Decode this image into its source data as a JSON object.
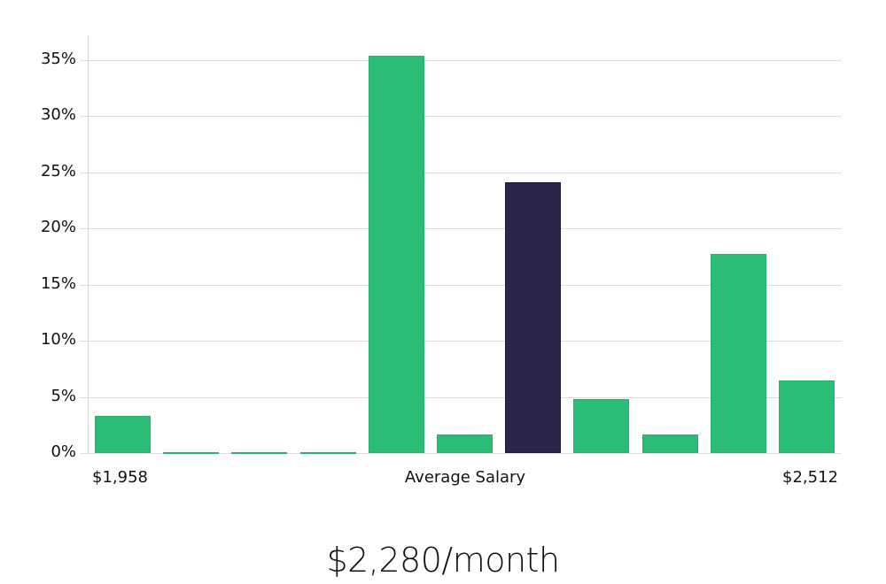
{
  "chart_data": {
    "type": "bar",
    "title": "",
    "xlabel": "Average Salary",
    "ylabel": "",
    "ylim": [
      0,
      37
    ],
    "yticks": [
      "0%",
      "5%",
      "10%",
      "15%",
      "20%",
      "25%",
      "30%",
      "35%"
    ],
    "x_range_labels": {
      "min": "$1,958",
      "center": "Average Salary",
      "max": "$2,512"
    },
    "grid": true,
    "legend": null,
    "categories": [
      "bin1",
      "bin2",
      "bin3",
      "bin4",
      "bin5",
      "bin6",
      "bin7",
      "bin8",
      "bin9",
      "bin10",
      "bin11"
    ],
    "values": [
      3.3,
      0.1,
      0.1,
      0.1,
      35.4,
      1.65,
      24.1,
      4.8,
      1.65,
      17.7,
      6.5
    ],
    "highlight_index": 6,
    "colors": {
      "bar": "#2bbd77",
      "highlight": "#29264a",
      "grid": "#dcdcdc"
    }
  },
  "headline": "$2,280/month"
}
